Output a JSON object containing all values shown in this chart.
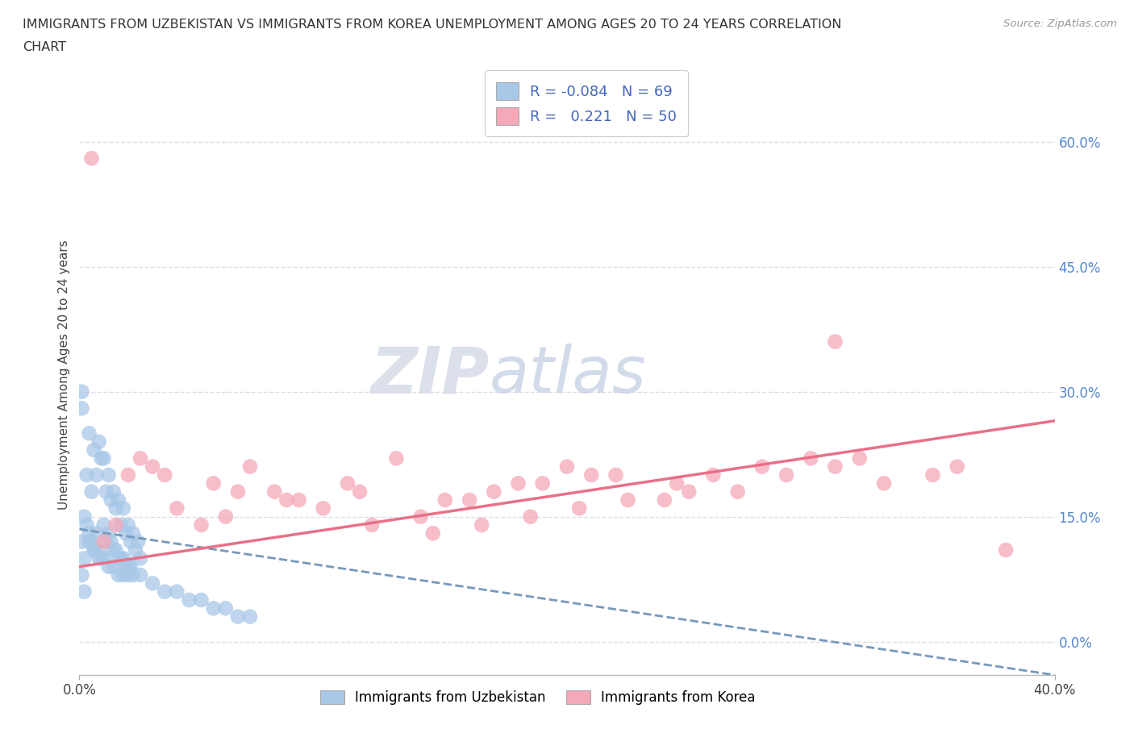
{
  "title_line1": "IMMIGRANTS FROM UZBEKISTAN VS IMMIGRANTS FROM KOREA UNEMPLOYMENT AMONG AGES 20 TO 24 YEARS CORRELATION",
  "title_line2": "CHART",
  "source": "Source: ZipAtlas.com",
  "ylabel": "Unemployment Among Ages 20 to 24 years",
  "xlim": [
    0.0,
    0.42
  ],
  "ylim": [
    -0.02,
    0.67
  ],
  "plot_xlim": [
    0.0,
    0.4
  ],
  "plot_ylim": [
    0.0,
    0.65
  ],
  "xtick_positions": [
    0.0,
    0.4
  ],
  "xtick_labels": [
    "0.0%",
    "40.0%"
  ],
  "ytick_positions": [
    0.0,
    0.15,
    0.3,
    0.45,
    0.6
  ],
  "ytick_labels": [
    "0.0%",
    "15.0%",
    "30.0%",
    "45.0%",
    "60.0%"
  ],
  "legend_R1": "-0.084",
  "legend_N1": "69",
  "legend_R2": "0.221",
  "legend_N2": "50",
  "uzbekistan_color": "#a8c8e8",
  "korea_color": "#f5a8b8",
  "uzbekistan_line_color": "#7799bb",
  "korea_line_color": "#e87088",
  "watermark_zip": "ZIP",
  "watermark_atlas": "atlas",
  "background_color": "#ffffff",
  "grid_color": "#ddddee",
  "uzbekistan_x": [
    0.001,
    0.002,
    0.003,
    0.004,
    0.005,
    0.006,
    0.007,
    0.008,
    0.009,
    0.01,
    0.011,
    0.012,
    0.013,
    0.014,
    0.015,
    0.016,
    0.017,
    0.018,
    0.019,
    0.02,
    0.021,
    0.022,
    0.003,
    0.005,
    0.007,
    0.009,
    0.011,
    0.013,
    0.015,
    0.017,
    0.019,
    0.021,
    0.023,
    0.025,
    0.004,
    0.006,
    0.008,
    0.01,
    0.012,
    0.014,
    0.016,
    0.018,
    0.02,
    0.022,
    0.024,
    0.002,
    0.004,
    0.006,
    0.008,
    0.01,
    0.012,
    0.014,
    0.016,
    0.018,
    0.02,
    0.025,
    0.03,
    0.035,
    0.04,
    0.045,
    0.05,
    0.055,
    0.06,
    0.065,
    0.07,
    0.001,
    0.001,
    0.001,
    0.002
  ],
  "uzbekistan_y": [
    0.12,
    0.15,
    0.14,
    0.13,
    0.12,
    0.11,
    0.13,
    0.11,
    0.1,
    0.14,
    0.12,
    0.13,
    0.12,
    0.11,
    0.11,
    0.1,
    0.1,
    0.1,
    0.09,
    0.09,
    0.09,
    0.08,
    0.2,
    0.18,
    0.2,
    0.22,
    0.18,
    0.17,
    0.16,
    0.14,
    0.13,
    0.12,
    0.11,
    0.1,
    0.25,
    0.23,
    0.24,
    0.22,
    0.2,
    0.18,
    0.17,
    0.16,
    0.14,
    0.13,
    0.12,
    0.1,
    0.12,
    0.11,
    0.1,
    0.1,
    0.09,
    0.09,
    0.08,
    0.08,
    0.08,
    0.08,
    0.07,
    0.06,
    0.06,
    0.05,
    0.05,
    0.04,
    0.04,
    0.03,
    0.03,
    0.28,
    0.3,
    0.08,
    0.06
  ],
  "korea_x": [
    0.005,
    0.01,
    0.02,
    0.025,
    0.03,
    0.04,
    0.05,
    0.055,
    0.065,
    0.07,
    0.08,
    0.09,
    0.1,
    0.11,
    0.115,
    0.13,
    0.14,
    0.15,
    0.16,
    0.17,
    0.18,
    0.19,
    0.2,
    0.21,
    0.22,
    0.225,
    0.24,
    0.25,
    0.26,
    0.27,
    0.28,
    0.29,
    0.3,
    0.31,
    0.32,
    0.33,
    0.35,
    0.36,
    0.38,
    0.015,
    0.035,
    0.06,
    0.085,
    0.12,
    0.145,
    0.165,
    0.185,
    0.205,
    0.245,
    0.31
  ],
  "korea_y": [
    0.58,
    0.12,
    0.2,
    0.22,
    0.21,
    0.16,
    0.14,
    0.19,
    0.18,
    0.21,
    0.18,
    0.17,
    0.16,
    0.19,
    0.18,
    0.22,
    0.15,
    0.17,
    0.17,
    0.18,
    0.19,
    0.19,
    0.21,
    0.2,
    0.2,
    0.17,
    0.17,
    0.18,
    0.2,
    0.18,
    0.21,
    0.2,
    0.22,
    0.21,
    0.22,
    0.19,
    0.2,
    0.21,
    0.11,
    0.14,
    0.2,
    0.15,
    0.17,
    0.14,
    0.13,
    0.14,
    0.15,
    0.16,
    0.19,
    0.36
  ],
  "uzbek_trend": [
    0.0,
    0.4,
    0.135,
    -0.04
  ],
  "korea_trend": [
    0.0,
    0.4,
    0.09,
    0.265
  ]
}
